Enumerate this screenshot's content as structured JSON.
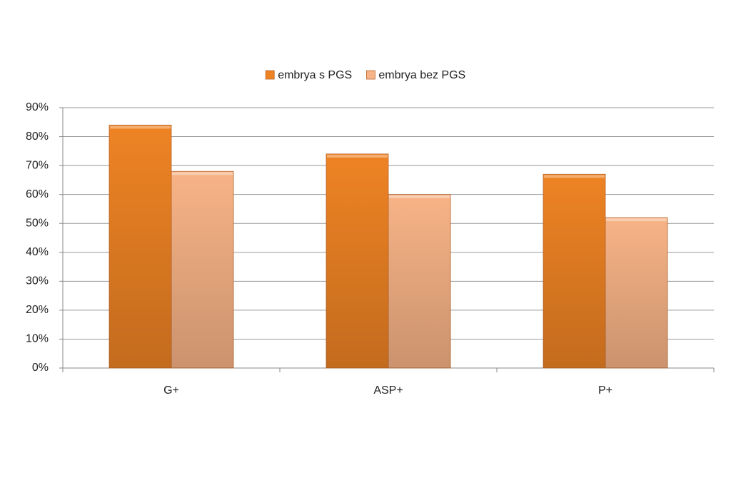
{
  "chart_data": {
    "type": "bar",
    "categories": [
      "G+",
      "ASP+",
      "P+"
    ],
    "series": [
      {
        "name": "embrya s PGS",
        "color": "#ee8324",
        "values": [
          84,
          74,
          67
        ]
      },
      {
        "name": "embrya bez PGS",
        "color": "#f7b386",
        "values": [
          68,
          60,
          52
        ]
      }
    ],
    "ylim": [
      0,
      90
    ],
    "yticks": [
      {
        "value": 0,
        "label": "0%"
      },
      {
        "value": 10,
        "label": "10%"
      },
      {
        "value": 20,
        "label": "20%"
      },
      {
        "value": 30,
        "label": "30%"
      },
      {
        "value": 40,
        "label": "40%"
      },
      {
        "value": 50,
        "label": "50%"
      },
      {
        "value": 60,
        "label": "60%"
      },
      {
        "value": 70,
        "label": "70%"
      },
      {
        "value": 80,
        "label": "80%"
      },
      {
        "value": 90,
        "label": "90%"
      }
    ],
    "grid": true,
    "legend": "top"
  }
}
